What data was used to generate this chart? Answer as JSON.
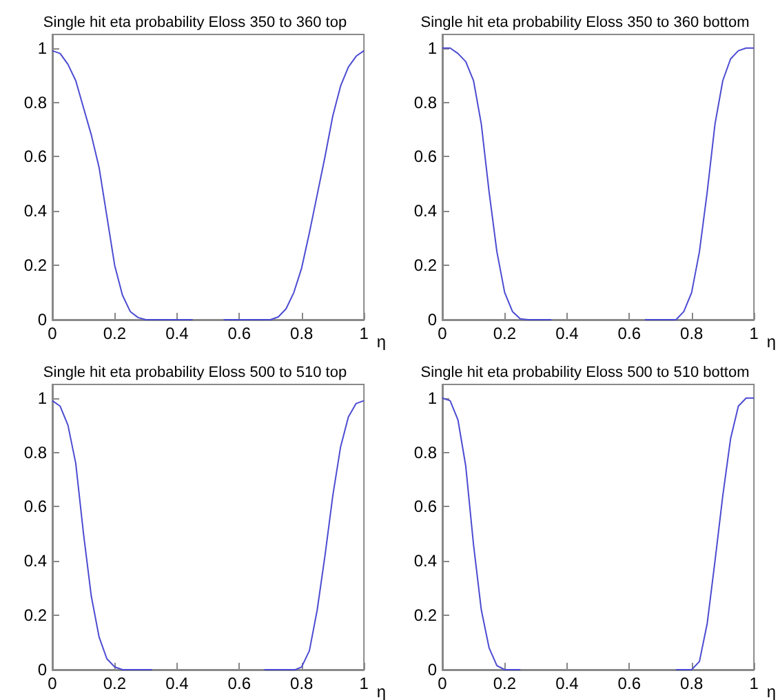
{
  "chart_data": [
    {
      "type": "line",
      "title": "Single hit eta probability Eloss 350 to 360 top",
      "xlabel": "η",
      "xlim": [
        0,
        1
      ],
      "ylim": [
        0,
        1.05
      ],
      "xticks": [
        0,
        0.2,
        0.4,
        0.6,
        0.8,
        1
      ],
      "yticks": [
        0,
        0.2,
        0.4,
        0.6,
        0.8,
        1
      ],
      "grid": false,
      "marker": "none",
      "line_style": "solid",
      "x": [
        0,
        0.025,
        0.05,
        0.075,
        0.1,
        0.125,
        0.15,
        0.175,
        0.2,
        0.225,
        0.25,
        0.275,
        0.3,
        0.45,
        0.5,
        0.55,
        0.7,
        0.725,
        0.75,
        0.775,
        0.8,
        0.825,
        0.85,
        0.875,
        0.9,
        0.925,
        0.95,
        0.975,
        1
      ],
      "series": [
        {
          "color": "#4b4bd2",
          "values": [
            0.99,
            0.98,
            0.94,
            0.88,
            0.78,
            0.68,
            0.56,
            0.38,
            0.2,
            0.09,
            0.03,
            0.008,
            0,
            0,
            null,
            0,
            0,
            0.01,
            0.04,
            0.1,
            0.19,
            0.32,
            0.46,
            0.6,
            0.75,
            0.86,
            0.93,
            0.97,
            0.99
          ]
        }
      ]
    },
    {
      "type": "line",
      "title": "Single hit eta probability Eloss 350 to 360 bottom",
      "xlabel": "η",
      "xlim": [
        0,
        1
      ],
      "ylim": [
        0,
        1.05
      ],
      "xticks": [
        0,
        0.2,
        0.4,
        0.6,
        0.8,
        1
      ],
      "yticks": [
        0,
        0.2,
        0.4,
        0.6,
        0.8,
        1
      ],
      "grid": false,
      "marker": "none",
      "line_style": "solid",
      "x": [
        0,
        0.025,
        0.05,
        0.075,
        0.1,
        0.125,
        0.15,
        0.175,
        0.2,
        0.225,
        0.25,
        0.275,
        0.35,
        0.5,
        0.65,
        0.75,
        0.775,
        0.8,
        0.825,
        0.85,
        0.875,
        0.9,
        0.925,
        0.95,
        0.975,
        1
      ],
      "series": [
        {
          "color": "#4b4bd2",
          "values": [
            1,
            1,
            0.98,
            0.95,
            0.88,
            0.72,
            0.47,
            0.25,
            0.1,
            0.03,
            0.003,
            0,
            0,
            null,
            0,
            0,
            0.03,
            0.1,
            0.25,
            0.47,
            0.72,
            0.88,
            0.96,
            0.99,
            1,
            1
          ]
        }
      ]
    },
    {
      "type": "line",
      "title": "Single hit eta probability Eloss 500 to 510 top",
      "xlabel": "η",
      "xlim": [
        0,
        1
      ],
      "ylim": [
        0,
        1.05
      ],
      "xticks": [
        0,
        0.2,
        0.4,
        0.6,
        0.8,
        1
      ],
      "yticks": [
        0,
        0.2,
        0.4,
        0.6,
        0.8,
        1
      ],
      "grid": false,
      "marker": "none",
      "line_style": "solid",
      "x": [
        0,
        0.025,
        0.05,
        0.075,
        0.1,
        0.125,
        0.15,
        0.175,
        0.2,
        0.225,
        0.32,
        0.5,
        0.68,
        0.78,
        0.8,
        0.825,
        0.85,
        0.875,
        0.9,
        0.925,
        0.95,
        0.975,
        1
      ],
      "series": [
        {
          "color": "#4b4bd2",
          "values": [
            0.99,
            0.97,
            0.9,
            0.76,
            0.5,
            0.27,
            0.12,
            0.04,
            0.01,
            0,
            0,
            null,
            0,
            0,
            0.01,
            0.07,
            0.22,
            0.42,
            0.64,
            0.82,
            0.93,
            0.98,
            0.99
          ]
        }
      ]
    },
    {
      "type": "line",
      "title": "Single hit eta probability Eloss 500 to 510 bottom",
      "xlabel": "η",
      "xlim": [
        0,
        1
      ],
      "ylim": [
        0,
        1.05
      ],
      "xticks": [
        0,
        0.2,
        0.4,
        0.6,
        0.8,
        1
      ],
      "yticks": [
        0,
        0.2,
        0.4,
        0.6,
        0.8,
        1
      ],
      "grid": false,
      "marker": "none",
      "line_style": "solid",
      "x": [
        0,
        0.025,
        0.05,
        0.075,
        0.1,
        0.125,
        0.15,
        0.175,
        0.2,
        0.25,
        0.5,
        0.75,
        0.8,
        0.825,
        0.85,
        0.875,
        0.9,
        0.925,
        0.95,
        0.975,
        1
      ],
      "series": [
        {
          "color": "#4b4bd2",
          "values": [
            1,
            0.99,
            0.92,
            0.75,
            0.46,
            0.22,
            0.08,
            0.015,
            0,
            0,
            null,
            0,
            0,
            0.03,
            0.17,
            0.4,
            0.64,
            0.85,
            0.97,
            1,
            1
          ]
        }
      ]
    }
  ]
}
